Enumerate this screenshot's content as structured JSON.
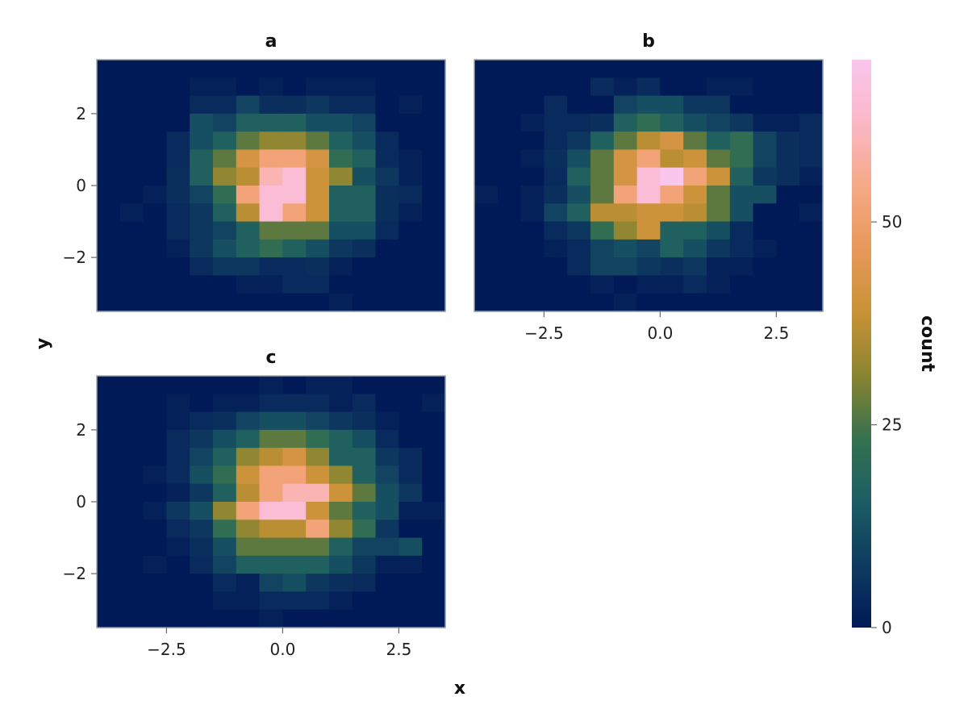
{
  "chart_data": {
    "type": "heatmap",
    "xlabel": "x",
    "ylabel": "y",
    "colorbar": {
      "label": "count",
      "range": [
        0,
        70
      ],
      "ticks": [
        0,
        25,
        50
      ],
      "tick_labels": [
        "0",
        "25",
        "50"
      ],
      "colormap": [
        "#001a57",
        "#0f3a60",
        "#1b5e64",
        "#35704f",
        "#8a8430",
        "#c99235",
        "#e8985a",
        "#f6a986",
        "#fbb8c7",
        "#f9c6ee"
      ]
    },
    "x_ticks": [
      -2.5,
      0.0,
      2.5
    ],
    "x_tick_labels": [
      "−2.5",
      "0.0",
      "2.5"
    ],
    "y_ticks": [
      -2,
      0,
      2
    ],
    "y_tick_labels": [
      "−2",
      "0",
      "2"
    ],
    "xlim": [
      -4.0,
      3.5
    ],
    "ylim": [
      -3.5,
      3.5
    ],
    "bin_x_edges": [
      -4.0,
      -3.5,
      -3.0,
      -2.5,
      -2.0,
      -1.5,
      -1.0,
      -0.5,
      0.0,
      0.5,
      1.0,
      1.5,
      2.0,
      2.5,
      3.0,
      3.5
    ],
    "bin_y_edges": [
      3.5,
      3.0,
      2.5,
      2.0,
      1.5,
      1.0,
      0.5,
      0.0,
      -0.5,
      -1.0,
      -1.5,
      -2.0,
      -2.5,
      -3.0,
      -3.5
    ],
    "panels": [
      {
        "title": "a",
        "show_x_ticks": false,
        "show_y_ticks": true,
        "counts": [
          [
            0,
            0,
            0,
            0,
            0,
            0,
            0,
            0,
            0,
            0,
            0,
            0,
            0,
            0,
            0
          ],
          [
            0,
            0,
            0,
            0,
            2,
            2,
            0,
            2,
            0,
            2,
            2,
            2,
            0,
            0,
            0
          ],
          [
            0,
            0,
            0,
            0,
            4,
            4,
            10,
            5,
            5,
            7,
            4,
            4,
            0,
            2,
            0
          ],
          [
            0,
            0,
            0,
            0,
            12,
            10,
            17,
            17,
            17,
            12,
            12,
            10,
            0,
            0,
            0
          ],
          [
            0,
            0,
            0,
            4,
            12,
            17,
            27,
            32,
            32,
            27,
            17,
            12,
            4,
            0,
            0
          ],
          [
            0,
            0,
            0,
            4,
            17,
            27,
            42,
            52,
            52,
            42,
            22,
            17,
            4,
            2,
            0
          ],
          [
            0,
            0,
            0,
            5,
            17,
            32,
            37,
            60,
            65,
            40,
            32,
            12,
            7,
            2,
            0
          ],
          [
            0,
            0,
            2,
            5,
            10,
            22,
            52,
            65,
            65,
            40,
            17,
            17,
            5,
            4,
            0
          ],
          [
            0,
            2,
            0,
            4,
            7,
            17,
            37,
            65,
            52,
            40,
            17,
            17,
            5,
            2,
            0
          ],
          [
            0,
            0,
            0,
            4,
            7,
            10,
            17,
            27,
            27,
            27,
            12,
            12,
            4,
            0,
            0
          ],
          [
            0,
            0,
            0,
            2,
            7,
            12,
            17,
            22,
            17,
            12,
            7,
            5,
            0,
            0,
            0
          ],
          [
            0,
            0,
            0,
            0,
            4,
            7,
            7,
            4,
            4,
            5,
            2,
            0,
            0,
            0,
            0
          ],
          [
            0,
            0,
            0,
            0,
            0,
            0,
            2,
            2,
            4,
            4,
            0,
            0,
            0,
            0,
            0
          ],
          [
            0,
            0,
            0,
            0,
            0,
            0,
            0,
            0,
            0,
            0,
            2,
            0,
            0,
            0,
            0
          ]
        ]
      },
      {
        "title": "b",
        "show_x_ticks": true,
        "show_y_ticks": false,
        "counts": [
          [
            0,
            0,
            0,
            0,
            0,
            0,
            0,
            0,
            0,
            0,
            0,
            0,
            0,
            0,
            0
          ],
          [
            0,
            0,
            0,
            0,
            0,
            4,
            2,
            4,
            0,
            0,
            2,
            2,
            0,
            0,
            0
          ],
          [
            0,
            0,
            0,
            4,
            0,
            0,
            10,
            12,
            12,
            7,
            7,
            0,
            0,
            0,
            0
          ],
          [
            0,
            0,
            2,
            4,
            4,
            5,
            17,
            22,
            17,
            12,
            10,
            7,
            2,
            2,
            4
          ],
          [
            0,
            0,
            0,
            4,
            7,
            17,
            27,
            37,
            42,
            27,
            17,
            22,
            10,
            5,
            4
          ],
          [
            0,
            0,
            2,
            5,
            12,
            27,
            42,
            52,
            37,
            40,
            27,
            22,
            10,
            5,
            4
          ],
          [
            0,
            0,
            0,
            4,
            17,
            27,
            42,
            65,
            70,
            52,
            40,
            17,
            7,
            5,
            2
          ],
          [
            2,
            0,
            2,
            5,
            12,
            27,
            52,
            65,
            52,
            40,
            27,
            12,
            12,
            0,
            0
          ],
          [
            0,
            0,
            2,
            10,
            17,
            37,
            37,
            40,
            40,
            37,
            27,
            12,
            0,
            0,
            2
          ],
          [
            0,
            0,
            0,
            4,
            7,
            22,
            32,
            40,
            17,
            17,
            12,
            4,
            0,
            0,
            0
          ],
          [
            0,
            0,
            0,
            2,
            4,
            10,
            12,
            10,
            17,
            12,
            7,
            4,
            2,
            0,
            0
          ],
          [
            0,
            0,
            0,
            0,
            4,
            10,
            10,
            7,
            5,
            7,
            2,
            2,
            0,
            0,
            0
          ],
          [
            0,
            0,
            0,
            0,
            0,
            2,
            0,
            2,
            2,
            4,
            2,
            0,
            0,
            0,
            0
          ],
          [
            0,
            0,
            0,
            0,
            0,
            0,
            2,
            0,
            0,
            0,
            0,
            0,
            0,
            0,
            0
          ]
        ]
      },
      {
        "title": "c",
        "show_x_ticks": true,
        "show_y_ticks": true,
        "counts": [
          [
            0,
            0,
            0,
            0,
            0,
            0,
            0,
            2,
            0,
            2,
            2,
            0,
            0,
            0,
            0
          ],
          [
            0,
            0,
            0,
            2,
            0,
            2,
            2,
            4,
            4,
            4,
            2,
            4,
            0,
            0,
            2
          ],
          [
            0,
            0,
            0,
            2,
            4,
            5,
            10,
            12,
            12,
            10,
            7,
            5,
            2,
            0,
            0
          ],
          [
            0,
            0,
            0,
            4,
            7,
            12,
            17,
            27,
            27,
            22,
            17,
            12,
            4,
            0,
            0
          ],
          [
            0,
            0,
            0,
            4,
            10,
            17,
            32,
            37,
            42,
            32,
            17,
            17,
            7,
            4,
            0
          ],
          [
            0,
            0,
            2,
            4,
            12,
            22,
            40,
            52,
            52,
            40,
            32,
            17,
            10,
            4,
            0
          ],
          [
            0,
            0,
            0,
            2,
            7,
            17,
            37,
            52,
            60,
            60,
            40,
            27,
            12,
            7,
            0
          ],
          [
            0,
            0,
            2,
            7,
            12,
            32,
            52,
            65,
            65,
            40,
            27,
            17,
            12,
            2,
            2
          ],
          [
            0,
            0,
            0,
            4,
            7,
            22,
            32,
            37,
            37,
            52,
            32,
            22,
            7,
            0,
            0
          ],
          [
            0,
            0,
            0,
            2,
            5,
            12,
            27,
            27,
            27,
            27,
            17,
            10,
            10,
            12,
            0
          ],
          [
            0,
            0,
            2,
            0,
            4,
            10,
            17,
            17,
            17,
            17,
            12,
            7,
            2,
            2,
            0
          ],
          [
            0,
            0,
            0,
            0,
            0,
            4,
            2,
            10,
            12,
            7,
            5,
            4,
            0,
            0,
            0
          ],
          [
            0,
            0,
            0,
            0,
            0,
            2,
            2,
            4,
            4,
            4,
            2,
            0,
            0,
            0,
            0
          ],
          [
            0,
            0,
            0,
            0,
            0,
            0,
            0,
            2,
            0,
            0,
            0,
            0,
            0,
            0,
            0
          ]
        ]
      }
    ]
  }
}
